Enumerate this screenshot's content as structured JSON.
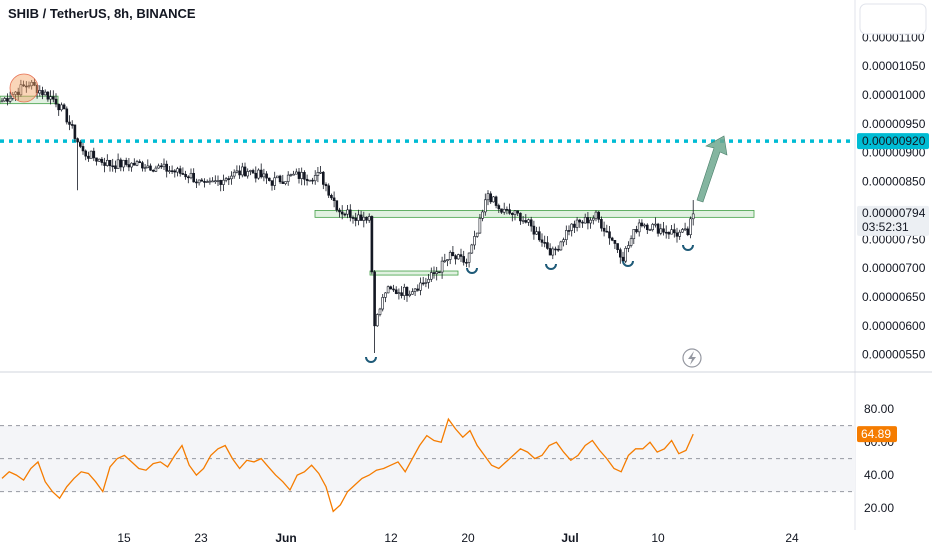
{
  "header": {
    "title": "SHIB / TetherUS, 8h, BINANCE"
  },
  "price_badge": {
    "value": "0.00000794",
    "countdown": "03:52:31"
  },
  "target_badge": {
    "value": "0.00000920"
  },
  "rsi_badge": {
    "value": "64.89"
  },
  "colors": {
    "up": "#131722",
    "down": "#131722",
    "target_line": "#00bcd4",
    "target_bg": "#00bcd4",
    "zone_fill": "#c8e6c9",
    "zone_stroke": "#43a047",
    "arrow": "#6fa88f",
    "rsi_line": "#f57c00",
    "rsi_badge": "#f57c00",
    "bottom_mark": "#1e5a78"
  },
  "chart_data": [
    {
      "type": "candlestick",
      "title": "SHIB / TetherUS, 8h, BINANCE",
      "y_ticks": [
        "0.00001100",
        "0.00001050",
        "0.00001000",
        "0.00000950",
        "0.00000900",
        "0.00000850",
        "0.00000800",
        "0.00000750",
        "0.00000700",
        "0.00000650",
        "0.00000600",
        "0.00000550"
      ],
      "ylim": [
        5.2e-06,
        1.13e-05
      ],
      "x_ticks": [
        "15",
        "23",
        "Jun",
        "12",
        "20",
        "Jul",
        "10",
        "24"
      ],
      "annotations": {
        "target_level": 9.2e-06,
        "resistance_zone": [
          7.88e-06,
          8e-06
        ],
        "consolidation_zone": [
          6.88e-06,
          6.95e-06
        ],
        "early_zone": [
          9.85e-06,
          9.98e-06
        ]
      },
      "anchors": [
        [
          0,
          9.9e-06
        ],
        [
          10,
          1.02e-05
        ],
        [
          20,
          9.9e-06
        ],
        [
          24,
          9.6e-06
        ],
        [
          30,
          9e-06
        ],
        [
          40,
          8.8e-06
        ],
        [
          52,
          8.8e-06
        ],
        [
          62,
          8.7e-06
        ],
        [
          70,
          8.6e-06
        ],
        [
          75,
          8.4e-06
        ],
        [
          84,
          8.6e-06
        ],
        [
          91,
          8.7e-06
        ],
        [
          100,
          8.5e-06
        ],
        [
          108,
          8.6e-06
        ],
        [
          118,
          8.6e-06
        ],
        [
          125,
          8e-06
        ],
        [
          132,
          7.9e-06
        ],
        [
          136,
          7.9e-06
        ],
        [
          138,
          6e-06
        ],
        [
          142,
          6.6e-06
        ],
        [
          150,
          6.6e-06
        ],
        [
          158,
          6.8e-06
        ],
        [
          166,
          7.2e-06
        ],
        [
          172,
          7.1e-06
        ],
        [
          176,
          7.6e-06
        ],
        [
          180,
          8.3e-06
        ],
        [
          184,
          8e-06
        ],
        [
          192,
          7.9e-06
        ],
        [
          200,
          7.5e-06
        ],
        [
          204,
          7.25e-06
        ],
        [
          210,
          7.7e-06
        ],
        [
          220,
          7.9e-06
        ],
        [
          226,
          7.5e-06
        ],
        [
          230,
          7.2e-06
        ],
        [
          236,
          7.8e-06
        ],
        [
          242,
          7.7e-06
        ],
        [
          250,
          7.6e-06
        ],
        [
          254,
          7.6e-06
        ],
        [
          256,
          7.95e-06
        ]
      ]
    },
    {
      "type": "line",
      "title": "RSI",
      "series": [
        {
          "values": [
            38,
            42,
            40,
            37,
            44,
            48,
            36,
            30,
            26,
            33,
            38,
            42,
            41,
            36,
            30,
            45,
            50,
            52,
            48,
            44,
            43,
            47,
            48,
            45,
            52,
            58,
            46,
            40,
            44,
            52,
            56,
            58,
            50,
            44,
            49,
            48,
            50,
            45,
            40,
            36,
            31,
            40,
            42,
            46,
            41,
            33,
            18,
            22,
            30,
            34,
            38,
            40,
            43,
            44,
            46,
            48,
            42,
            50,
            58,
            64,
            61,
            60,
            74,
            68,
            63,
            67,
            58,
            52,
            46,
            44,
            48,
            52,
            56,
            54,
            50,
            52,
            58,
            60,
            54,
            49,
            52,
            58,
            61,
            55,
            50,
            44,
            42,
            52,
            56,
            56,
            60,
            54,
            56,
            61,
            53,
            55,
            64.89
          ]
        }
      ],
      "y_ticks": [
        "80.00",
        "60.00",
        "40.00",
        "20.00"
      ],
      "ylim": [
        14,
        88
      ],
      "levels": {
        "upper": 70,
        "mid": 50,
        "lower": 30
      }
    }
  ]
}
